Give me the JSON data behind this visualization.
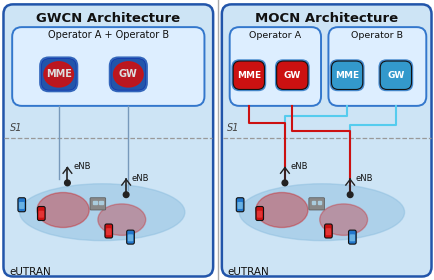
{
  "fig_width": 4.35,
  "fig_height": 2.8,
  "dpi": 100,
  "bg_color": "#ffffff",
  "left_title": "GWCN Architecture",
  "right_title": "MOCN Architecture",
  "title_fontsize": 9.5,
  "outer_box_facecolor": "#cde4f5",
  "outer_box_edgecolor": "#2255aa",
  "inner_box_facecolor": "#ddeeff",
  "inner_box_edgecolor": "#3377cc",
  "red_node_face": "#cc1111",
  "blue_node_face": "#3399cc",
  "red_glow": "#cc1111",
  "node_edge": "#111111",
  "node_text_color": "#111111",
  "s1_text_color": "#444444",
  "enb_color": "#222222",
  "phone_blue": "#2277cc",
  "phone_red": "#cc1111",
  "phone_edge": "#111111",
  "ellipse_blue": "#88bbdd",
  "red_line": "#cc1111",
  "blue_line": "#55ccee",
  "gray_line": "#7799bb",
  "s1_line": "#999999",
  "divider_color": "#aaaaaa",
  "op_ab_label": "Operator A + Operator B",
  "op_a_label": "Operator A",
  "op_b_label": "Operator B",
  "mme_label": "MME",
  "gw_label": "GW",
  "s1_label": "S1",
  "eutran_label": "eUTRAN",
  "enb_label": "eNB"
}
